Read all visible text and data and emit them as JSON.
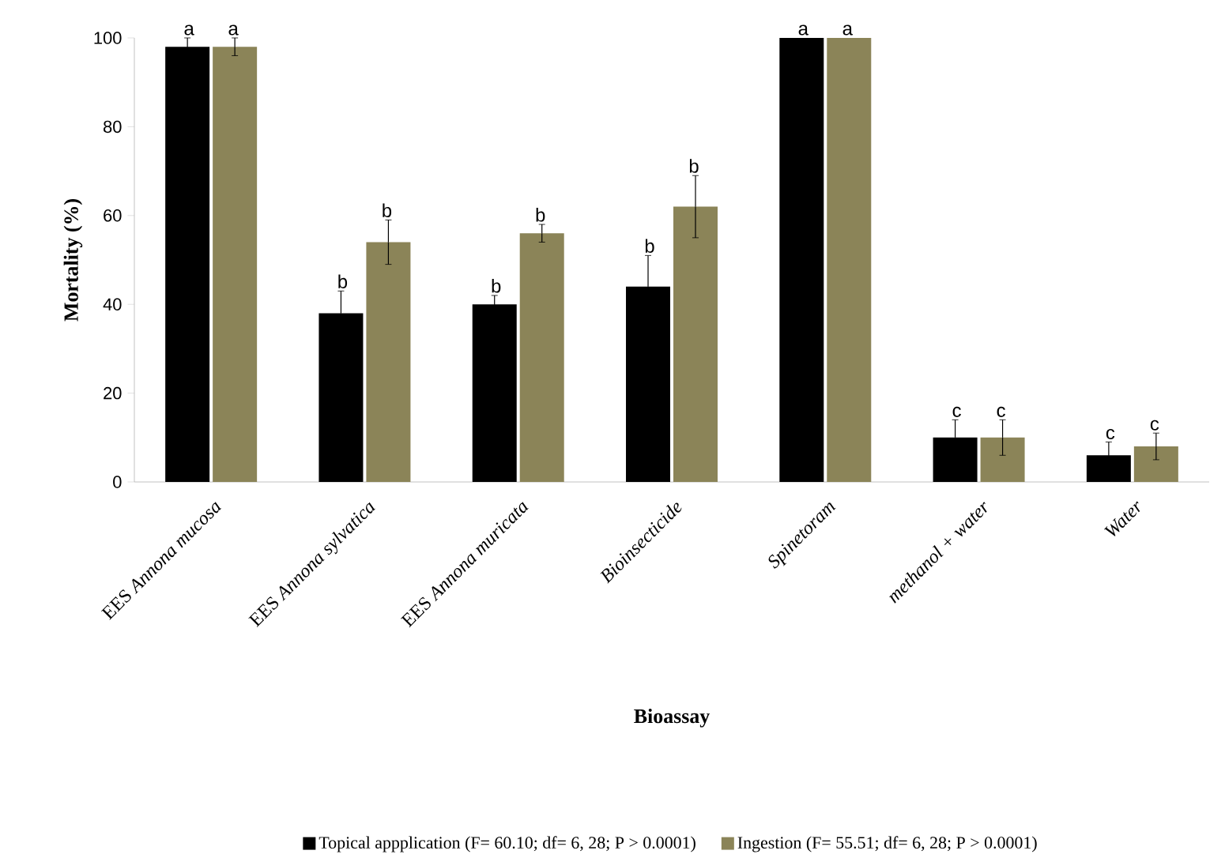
{
  "chart_data": {
    "type": "bar",
    "xlabel": "Bioassay",
    "ylabel": "Mortality (%)",
    "categories": [
      "EES *Annona mucosa*",
      "EES *Annona sylvatica*",
      "EES *Annona muricata*",
      "*Bioinsecticide*",
      "*Spinetoram*",
      "*methanol + water*",
      "*Water*"
    ],
    "series": [
      {
        "name": "Topical appplication (F= 60.10; df= 6, 28; P > 0.0001)",
        "color": "#000000",
        "values": [
          98,
          38,
          40,
          44,
          100,
          10,
          6
        ],
        "errors": [
          2,
          5,
          2,
          7,
          null,
          4,
          3
        ]
      },
      {
        "name": "Ingestion (F= 55.51; df= 6, 28; P > 0.0001)",
        "color": "#8b8458",
        "values": [
          98,
          54,
          56,
          62,
          100,
          10,
          8
        ],
        "errors": [
          2,
          5,
          2,
          7,
          null,
          4,
          3
        ]
      }
    ],
    "ylim": [
      0,
      100
    ],
    "yticks": [
      0,
      20,
      40,
      60,
      80,
      100
    ],
    "grid": false,
    "legend": "bottom",
    "annotations": [
      {
        "text": "a",
        "x": "EES *Annona mucosa*",
        "y": 98
      },
      {
        "text": "a",
        "x": "EES *Annona mucosa*",
        "y": 98
      },
      {
        "text": "b",
        "x": "EES *Annona sylvatica*",
        "y": 38
      },
      {
        "text": "b",
        "x": "EES *Annona sylvatica*",
        "y": 54
      },
      {
        "text": "b",
        "x": "EES *Annona muricata*",
        "y": 40
      },
      {
        "text": "b",
        "x": "EES *Annona muricata*",
        "y": 56
      },
      {
        "text": "b",
        "x": "*Bioinsecticide*",
        "y": 44
      },
      {
        "text": "b",
        "x": "*Bioinsecticide*",
        "y": 62
      },
      {
        "text": "a",
        "x": "*Spinetoram*",
        "y": 100
      },
      {
        "text": "a",
        "x": "*Spinetoram*",
        "y": 100
      },
      {
        "text": "c",
        "x": "*methanol + water*",
        "y": 10
      },
      {
        "text": "c",
        "x": "*methanol + water*",
        "y": 10
      },
      {
        "text": "c",
        "x": "*Water*",
        "y": 6
      },
      {
        "text": "c",
        "x": "*Water*",
        "y": 8
      }
    ]
  }
}
